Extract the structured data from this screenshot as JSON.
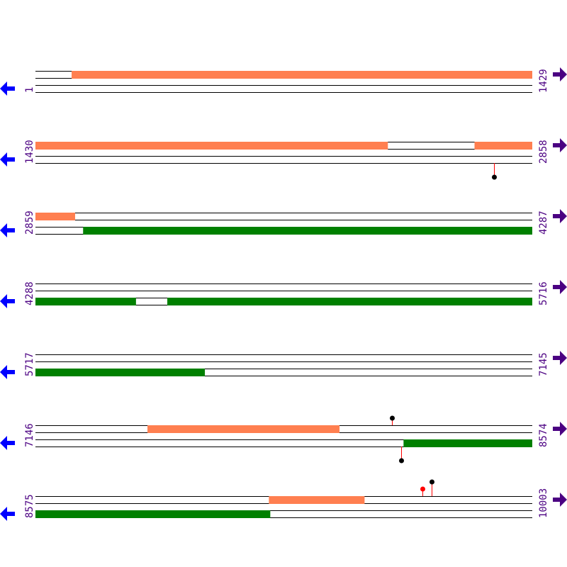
{
  "colors": {
    "forward_feature": "#ff7f50",
    "reverse_feature": "#008000",
    "strand_line": "#000000",
    "label": "#4b0082",
    "left_arrow": "#0000ff",
    "right_arrow": "#4b0082",
    "stem": "#ff0000",
    "marker_black": "#000000",
    "marker_red": "#ff0000"
  },
  "icons": {
    "left": "arrow-left-icon",
    "right": "arrow-right-icon"
  },
  "rows": [
    {
      "start": "1",
      "end": "1429",
      "s": 1,
      "e": 1429,
      "top": [
        [
          105,
          1429
        ]
      ],
      "bottom": [],
      "markers": []
    },
    {
      "start": "1430",
      "end": "2858",
      "s": 1430,
      "e": 2858,
      "top": [
        [
          1430,
          2443
        ],
        [
          2692,
          2858
        ]
      ],
      "bottom": [],
      "markers": [
        {
          "pos": 2747,
          "side": "below",
          "tall": true,
          "color": "black"
        }
      ]
    },
    {
      "start": "2859",
      "end": "4287",
      "s": 2859,
      "e": 4287,
      "top": [
        [
          2859,
          2973
        ]
      ],
      "bottom": [
        [
          2996,
          4287
        ]
      ],
      "markers": []
    },
    {
      "start": "4288",
      "end": "5716",
      "s": 4288,
      "e": 5716,
      "top": [],
      "bottom": [
        [
          4288,
          4577
        ],
        [
          4667,
          5716
        ]
      ],
      "markers": []
    },
    {
      "start": "5717",
      "end": "7145",
      "s": 5717,
      "e": 7145,
      "top": [],
      "bottom": [
        [
          5717,
          6204
        ]
      ],
      "markers": []
    },
    {
      "start": "7146",
      "end": "8574",
      "s": 7146,
      "e": 8574,
      "top": [
        [
          7468,
          8020
        ]
      ],
      "bottom": [
        [
          8204,
          8574
        ]
      ],
      "markers": [
        {
          "pos": 8171,
          "side": "above",
          "tall": false,
          "color": "black"
        },
        {
          "pos": 8198,
          "side": "below",
          "tall": true,
          "color": "black"
        }
      ]
    },
    {
      "start": "8575",
      "end": "10003",
      "s": 8575,
      "e": 10003,
      "top": [
        [
          9246,
          9521
        ]
      ],
      "bottom": [
        [
          8575,
          9250
        ]
      ],
      "markers": [
        {
          "pos": 9688,
          "side": "above",
          "tall": false,
          "color": "red"
        },
        {
          "pos": 9714,
          "side": "above",
          "tall": true,
          "color": "black"
        }
      ]
    }
  ]
}
